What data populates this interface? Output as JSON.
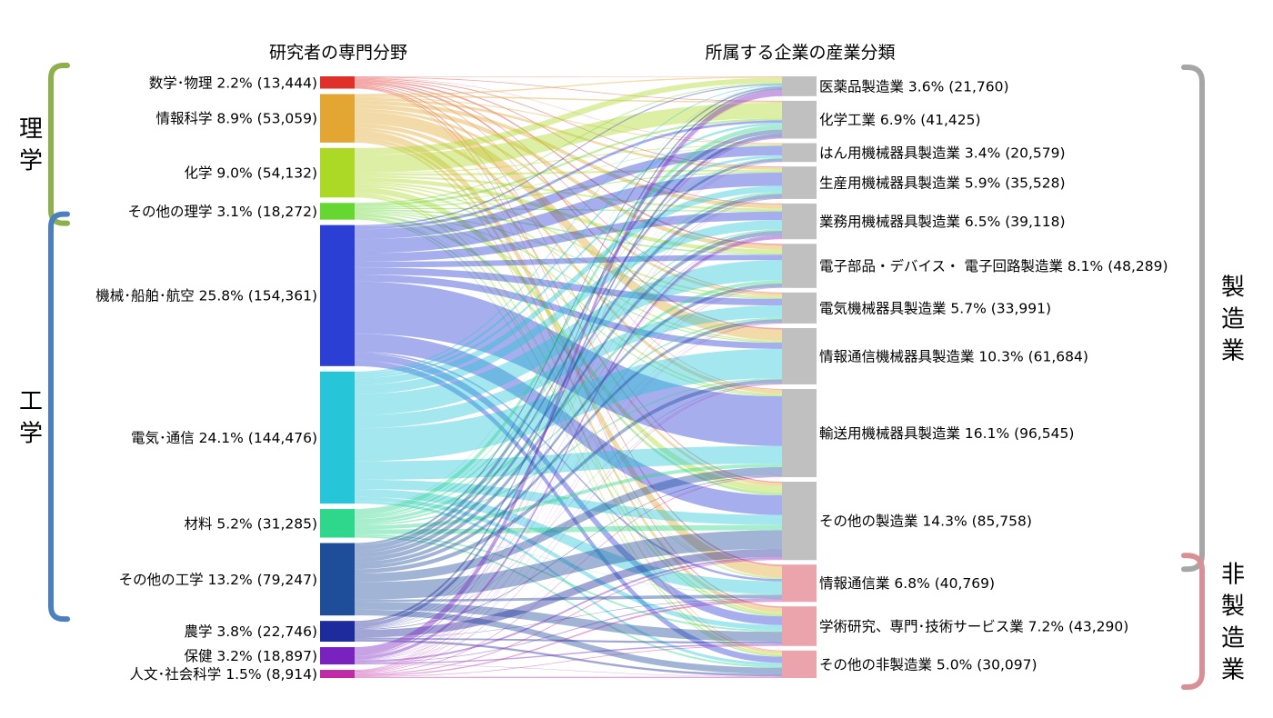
{
  "chart_data": {
    "type": "sankey",
    "left_header": "研究者の専門分野",
    "right_header": "所属する企業の産業分類",
    "left_groups": [
      {
        "label": "理学",
        "color": "#8db04b",
        "members": [
          0,
          3
        ]
      },
      {
        "label": "工学",
        "color": "#4a7fc0",
        "members": [
          4,
          7
        ]
      }
    ],
    "right_groups": [
      {
        "label": "製造業",
        "color": "#a6a6a6",
        "members": [
          0,
          9
        ]
      },
      {
        "label": "非製造業",
        "color": "#d98f96",
        "members": [
          10,
          12
        ]
      }
    ],
    "sources": [
      {
        "name": "数学･物理",
        "pct": "2.2%",
        "count": "13,444",
        "value": 13444,
        "color": "#e0302a"
      },
      {
        "name": "情報科学",
        "pct": "8.9%",
        "count": "53,059",
        "value": 53059,
        "color": "#e3a632"
      },
      {
        "name": "化学",
        "pct": "9.0%",
        "count": "54,132",
        "value": 54132,
        "color": "#acd926"
      },
      {
        "name": "その他の理学",
        "pct": "3.1%",
        "count": "18,272",
        "value": 18272,
        "color": "#66d631"
      },
      {
        "name": "機械･船舶･航空",
        "pct": "25.8%",
        "count": "154,361",
        "value": 154361,
        "color": "#2b3fd4"
      },
      {
        "name": "電気･通信",
        "pct": "24.1%",
        "count": "144,476",
        "value": 144476,
        "color": "#26c6d8"
      },
      {
        "name": "材料",
        "pct": "5.2%",
        "count": "31,285",
        "value": 31285,
        "color": "#2ed78b"
      },
      {
        "name": "その他の工学",
        "pct": "13.2%",
        "count": "79,247",
        "value": 79247,
        "color": "#1e4d9a"
      },
      {
        "name": "農学",
        "pct": "3.8%",
        "count": "22,746",
        "value": 22746,
        "color": "#1e2b9c"
      },
      {
        "name": "保健",
        "pct": "3.2%",
        "count": "18,897",
        "value": 18897,
        "color": "#7a22c0"
      },
      {
        "name": "人文･社会科学",
        "pct": "1.5%",
        "count": "8,914",
        "value": 8914,
        "color": "#c02aa6"
      }
    ],
    "targets": [
      {
        "name": "医薬品製造業",
        "pct": "3.6%",
        "count": "21,760",
        "value": 21760,
        "color": "#c0c0c0"
      },
      {
        "name": "化学工業",
        "pct": "6.9%",
        "count": "41,425",
        "value": 41425,
        "color": "#c0c0c0"
      },
      {
        "name": "はん用機械器具製造業",
        "pct": "3.4%",
        "count": "20,579",
        "value": 20579,
        "color": "#c0c0c0"
      },
      {
        "name": "生産用機械器具製造業",
        "pct": "5.9%",
        "count": "35,528",
        "value": 35528,
        "color": "#c0c0c0"
      },
      {
        "name": "業務用機械器具製造業",
        "pct": "6.5%",
        "count": "39,118",
        "value": 39118,
        "color": "#c0c0c0"
      },
      {
        "name": "電子部品・デバイス・ 電子回路製造業",
        "pct": "8.1%",
        "count": "48,289",
        "value": 48289,
        "color": "#c0c0c0"
      },
      {
        "name": "電気機械器具製造業",
        "pct": "5.7%",
        "count": "33,991",
        "value": 33991,
        "color": "#c0c0c0"
      },
      {
        "name": "情報通信機械器具製造業",
        "pct": "10.3%",
        "count": "61,684",
        "value": 61684,
        "color": "#c0c0c0"
      },
      {
        "name": "輸送用機械器具製造業",
        "pct": "16.1%",
        "count": "96,545",
        "value": 96545,
        "color": "#c0c0c0"
      },
      {
        "name": "その他の製造業",
        "pct": "14.3%",
        "count": "85,758",
        "value": 85758,
        "color": "#c0c0c0"
      },
      {
        "name": "情報通信業",
        "pct": "6.8%",
        "count": "40,769",
        "value": 40769,
        "color": "#eba3ac"
      },
      {
        "name": "学術研究、専門･技術サービス業",
        "pct": "7.2%",
        "count": "43,290",
        "value": 43290,
        "color": "#eba3ac"
      },
      {
        "name": "その他の非製造業",
        "pct": "5.0%",
        "count": "30,097",
        "value": 30097,
        "color": "#eba3ac"
      }
    ],
    "flows": [
      {
        "source": 0,
        "shares": [
          0.04,
          0.06,
          0.03,
          0.07,
          0.08,
          0.13,
          0.08,
          0.14,
          0.06,
          0.09,
          0.09,
          0.09,
          0.04
        ]
      },
      {
        "source": 1,
        "shares": [
          0.03,
          0.03,
          0.02,
          0.05,
          0.08,
          0.09,
          0.06,
          0.25,
          0.08,
          0.06,
          0.14,
          0.07,
          0.04
        ]
      },
      {
        "source": 2,
        "shares": [
          0.14,
          0.36,
          0.02,
          0.04,
          0.04,
          0.08,
          0.04,
          0.03,
          0.04,
          0.12,
          0.01,
          0.04,
          0.04
        ]
      },
      {
        "source": 3,
        "shares": [
          0.07,
          0.13,
          0.03,
          0.07,
          0.07,
          0.09,
          0.06,
          0.07,
          0.07,
          0.16,
          0.03,
          0.09,
          0.07
        ]
      },
      {
        "source": 4,
        "shares": [
          0.01,
          0.02,
          0.07,
          0.1,
          0.06,
          0.04,
          0.05,
          0.05,
          0.37,
          0.13,
          0.01,
          0.05,
          0.04
        ]
      },
      {
        "source": 5,
        "shares": [
          0.01,
          0.02,
          0.02,
          0.05,
          0.07,
          0.16,
          0.1,
          0.25,
          0.14,
          0.07,
          0.06,
          0.03,
          0.02
        ]
      },
      {
        "source": 6,
        "shares": [
          0.02,
          0.18,
          0.03,
          0.07,
          0.05,
          0.12,
          0.06,
          0.05,
          0.13,
          0.17,
          0.01,
          0.05,
          0.06
        ]
      },
      {
        "source": 7,
        "shares": [
          0.03,
          0.07,
          0.04,
          0.06,
          0.06,
          0.05,
          0.05,
          0.06,
          0.12,
          0.24,
          0.03,
          0.11,
          0.08
        ]
      },
      {
        "source": 8,
        "shares": [
          0.12,
          0.18,
          0.01,
          0.02,
          0.02,
          0.02,
          0.01,
          0.02,
          0.04,
          0.38,
          0.02,
          0.08,
          0.1
        ]
      },
      {
        "source": 9,
        "shares": [
          0.45,
          0.06,
          0.01,
          0.01,
          0.18,
          0.01,
          0.02,
          0.02,
          0.01,
          0.1,
          0.04,
          0.07,
          0.02
        ]
      },
      {
        "source": 10,
        "shares": [
          0.05,
          0.05,
          0.03,
          0.05,
          0.06,
          0.05,
          0.05,
          0.08,
          0.1,
          0.12,
          0.14,
          0.08,
          0.14
        ]
      }
    ]
  }
}
